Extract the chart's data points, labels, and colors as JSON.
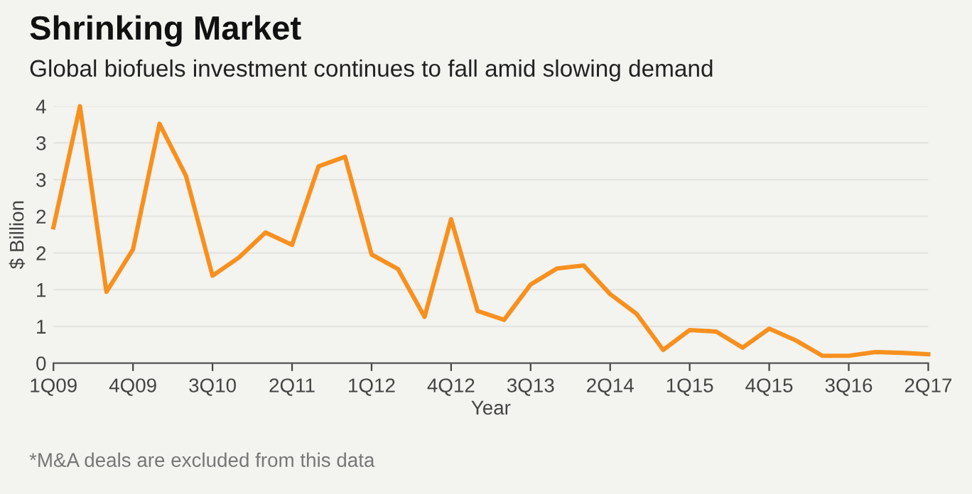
{
  "chart_data": {
    "type": "line",
    "title": "Shrinking Market",
    "subtitle": "Global biofuels investment continues to fall amid slowing demand",
    "xlabel": "Year",
    "ylabel": "$ Billion",
    "categories": [
      "1Q09",
      null,
      null,
      "4Q09",
      null,
      null,
      "3Q10",
      null,
      null,
      "2Q11",
      null,
      null,
      "1Q12",
      null,
      null,
      "4Q12",
      null,
      null,
      "3Q13",
      null,
      null,
      "2Q14",
      null,
      null,
      "1Q15",
      null,
      null,
      "4Q15",
      null,
      null,
      "3Q16",
      null,
      null,
      "2Q17"
    ],
    "series": [
      {
        "color": "#f7901e",
        "values": [
          1.85,
          3.5,
          0.97,
          1.55,
          3.26,
          2.55,
          1.19,
          1.44,
          1.78,
          1.61,
          2.68,
          2.81,
          1.48,
          1.28,
          0.63,
          1.96,
          0.71,
          0.59,
          1.07,
          1.29,
          1.33,
          0.94,
          0.67,
          0.18,
          0.45,
          0.43,
          0.21,
          0.47,
          0.31,
          0.1,
          0.1,
          0.15,
          0.14,
          0.12
        ]
      }
    ],
    "ylim": [
      0,
      3.5
    ],
    "yticks": [
      0,
      {
        "value": 0.5,
        "label": "1"
      },
      1,
      {
        "value": 1.5,
        "label": "2"
      },
      2,
      {
        "value": 2.5,
        "label": "3"
      },
      3,
      {
        "value": 3.5,
        "label": "4"
      }
    ],
    "grid": "y",
    "legend": false,
    "marker": "none",
    "line_style": "solid",
    "annotations": [
      "*M&A deals are excluded from this data"
    ]
  }
}
